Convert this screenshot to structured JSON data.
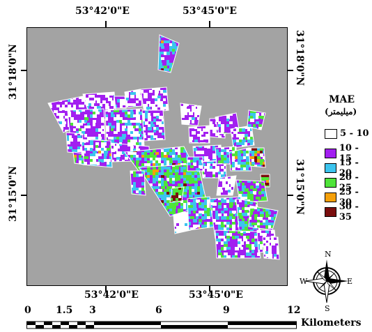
{
  "map": {
    "top_longitudes": [
      "53°42'0\"E",
      "53°45'0\"E"
    ],
    "bottom_longitudes": [
      "53°42'0\"E",
      "53°45'0\"E"
    ],
    "left_latitudes": [
      "31°18'0\"N",
      "31°15'0\"N"
    ],
    "right_latitudes": [
      "31°18'0\"N",
      "31°15'0\"N"
    ],
    "background_color": "#a3a3a3"
  },
  "legend": {
    "title": "MAE",
    "subtitle": "(میلیمتر)",
    "classes": [
      {
        "label": "5 - 10",
        "color": "#ffffff"
      },
      {
        "label": "10 - 15",
        "color": "#a21ff0"
      },
      {
        "label": "15 - 20",
        "color": "#3cc4ee"
      },
      {
        "label": "20 - 25",
        "color": "#4fe43a"
      },
      {
        "label": "25 - 30",
        "color": "#f5a00a"
      },
      {
        "label": "30 - 35",
        "color": "#7a0e0e"
      }
    ]
  },
  "north_arrow": {
    "n": "N",
    "s": "S",
    "e": "E",
    "w": "W"
  },
  "scale_bar": {
    "ticks": [
      "0",
      "1.5",
      "3",
      "6",
      "9",
      "12"
    ],
    "unit": "Kilometers"
  }
}
